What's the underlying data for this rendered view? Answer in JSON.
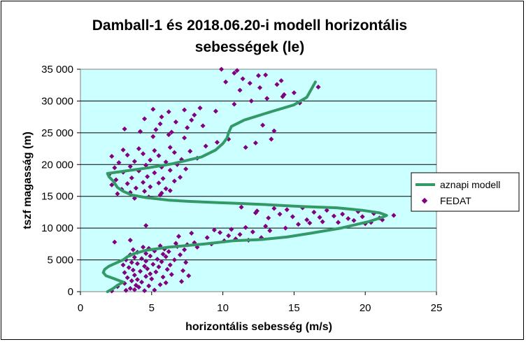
{
  "chart_data": {
    "type": "scatter",
    "title_lines": [
      "Damball-1 és 2018.06.20-i modell horizontális",
      "sebességek (le)"
    ],
    "xlabel": "horizontális sebesség (m/s)",
    "ylabel": "tszf magasság (m)",
    "xlim": [
      0,
      25
    ],
    "ylim": [
      0,
      35000
    ],
    "x_ticks": [
      "0",
      "5",
      "10",
      "15",
      "20",
      "25"
    ],
    "y_ticks": [
      "0",
      "5 000",
      "10 000",
      "15 000",
      "20 000",
      "25 000",
      "30 000",
      "35 000"
    ],
    "plot_background": "#ccffff",
    "legend_position": "right",
    "series": [
      {
        "name": "aznapi modell",
        "kind": "line",
        "color": "#339966",
        "points": [
          [
            1.9,
            0
          ],
          [
            2.3,
            500
          ],
          [
            2.6,
            1000
          ],
          [
            3.0,
            1500
          ],
          [
            2.4,
            2000
          ],
          [
            1.8,
            2500
          ],
          [
            1.6,
            3000
          ],
          [
            1.7,
            3500
          ],
          [
            2.0,
            4000
          ],
          [
            2.5,
            4500
          ],
          [
            3.0,
            5000
          ],
          [
            3.3,
            5500
          ],
          [
            3.8,
            6000
          ],
          [
            4.6,
            6500
          ],
          [
            6.2,
            7000
          ],
          [
            8.7,
            7500
          ],
          [
            10.7,
            8000
          ],
          [
            12.7,
            8200
          ],
          [
            14.5,
            8600
          ],
          [
            16.2,
            9200
          ],
          [
            18.3,
            10000
          ],
          [
            20.2,
            11000
          ],
          [
            21.2,
            11700
          ],
          [
            21.5,
            12000
          ],
          [
            21.0,
            12400
          ],
          [
            19.8,
            12800
          ],
          [
            18.0,
            13200
          ],
          [
            15.5,
            13400
          ],
          [
            13.0,
            13700
          ],
          [
            11.0,
            13900
          ],
          [
            9.7,
            14000
          ],
          [
            7.7,
            14200
          ],
          [
            6.2,
            14400
          ],
          [
            4.6,
            14800
          ],
          [
            3.6,
            15200
          ],
          [
            3.0,
            15800
          ],
          [
            2.6,
            16400
          ],
          [
            2.3,
            17400
          ],
          [
            2.0,
            18100
          ],
          [
            1.9,
            18600
          ],
          [
            3.2,
            19000
          ],
          [
            4.8,
            19500
          ],
          [
            6.4,
            20100
          ],
          [
            8.5,
            21200
          ],
          [
            9.5,
            22300
          ],
          [
            10.0,
            23300
          ],
          [
            10.3,
            24200
          ],
          [
            10.4,
            25000
          ],
          [
            10.6,
            26000
          ],
          [
            11.5,
            27000
          ],
          [
            13.5,
            28400
          ],
          [
            15.0,
            29400
          ],
          [
            15.9,
            30600
          ],
          [
            16.5,
            33000
          ]
        ]
      },
      {
        "name": "FEDAT",
        "kind": "scatter",
        "color": "#800080",
        "points": [
          [
            2.2,
            100
          ],
          [
            3.2,
            200
          ],
          [
            3.8,
            300
          ],
          [
            4.5,
            150
          ],
          [
            5.2,
            250
          ],
          [
            3.5,
            500
          ],
          [
            4.1,
            700
          ],
          [
            2.6,
            800
          ],
          [
            3.9,
            1000
          ],
          [
            4.8,
            900
          ],
          [
            5.6,
            1100
          ],
          [
            3.1,
            1300
          ],
          [
            4.3,
            1500
          ],
          [
            3.6,
            1700
          ],
          [
            6.0,
            1400
          ],
          [
            7.1,
            1600
          ],
          [
            4.0,
            1900
          ],
          [
            5.0,
            2000
          ],
          [
            3.3,
            2200
          ],
          [
            4.6,
            2400
          ],
          [
            5.8,
            2300
          ],
          [
            3.8,
            2600
          ],
          [
            4.9,
            2800
          ],
          [
            6.4,
            2700
          ],
          [
            7.6,
            2500
          ],
          [
            3.1,
            3000
          ],
          [
            4.2,
            3200
          ],
          [
            5.3,
            3100
          ],
          [
            3.7,
            3400
          ],
          [
            4.7,
            3600
          ],
          [
            6.1,
            3500
          ],
          [
            7.2,
            3300
          ],
          [
            3.4,
            3800
          ],
          [
            4.5,
            4000
          ],
          [
            5.5,
            3900
          ],
          [
            3.0,
            4200
          ],
          [
            4.0,
            4400
          ],
          [
            5.1,
            4300
          ],
          [
            6.3,
            4200
          ],
          [
            3.6,
            4600
          ],
          [
            4.6,
            4800
          ],
          [
            5.7,
            4700
          ],
          [
            7.4,
            4600
          ],
          [
            3.2,
            5000
          ],
          [
            4.3,
            5200
          ],
          [
            5.4,
            5100
          ],
          [
            6.6,
            5000
          ],
          [
            3.8,
            5400
          ],
          [
            4.9,
            5600
          ],
          [
            6.0,
            5500
          ],
          [
            3.5,
            5800
          ],
          [
            4.6,
            6000
          ],
          [
            5.8,
            5900
          ],
          [
            7.0,
            5800
          ],
          [
            4.0,
            6200
          ],
          [
            5.2,
            6400
          ],
          [
            6.2,
            6300
          ],
          [
            3.7,
            6600
          ],
          [
            4.8,
            6800
          ],
          [
            5.9,
            6700
          ],
          [
            7.3,
            6600
          ],
          [
            4.4,
            7000
          ],
          [
            5.6,
            7200
          ],
          [
            6.8,
            7100
          ],
          [
            8.2,
            7000
          ],
          [
            7.5,
            7400
          ],
          [
            6.7,
            7600
          ],
          [
            8.0,
            7700
          ],
          [
            9.2,
            7500
          ],
          [
            10.1,
            8000
          ],
          [
            10.9,
            8300
          ],
          [
            11.8,
            8100
          ],
          [
            12.7,
            8500
          ],
          [
            10.4,
            8800
          ],
          [
            11.2,
            9000
          ],
          [
            9.8,
            9300
          ],
          [
            12.1,
            9400
          ],
          [
            13.3,
            9600
          ],
          [
            10.6,
            9800
          ],
          [
            11.6,
            10100
          ],
          [
            13.0,
            10300
          ],
          [
            14.4,
            10000
          ],
          [
            15.3,
            10600
          ],
          [
            16.1,
            10800
          ],
          [
            17.0,
            11000
          ],
          [
            18.1,
            10900
          ],
          [
            19.2,
            11200
          ],
          [
            20.0,
            10700
          ],
          [
            21.2,
            11300
          ],
          [
            22.0,
            12000
          ],
          [
            20.6,
            12300
          ],
          [
            19.5,
            12600
          ],
          [
            18.4,
            12200
          ],
          [
            17.3,
            12800
          ],
          [
            16.4,
            12500
          ],
          [
            15.6,
            13200
          ],
          [
            14.5,
            12900
          ],
          [
            13.6,
            13100
          ],
          [
            12.4,
            12700
          ],
          [
            11.3,
            13300
          ],
          [
            19.8,
            11800
          ],
          [
            18.8,
            11500
          ],
          [
            17.8,
            11900
          ],
          [
            16.8,
            11700
          ],
          [
            15.9,
            11300
          ],
          [
            14.9,
            11800
          ],
          [
            20.4,
            10900
          ],
          [
            21.0,
            11600
          ],
          [
            13.2,
            11600
          ],
          [
            12.3,
            12400
          ],
          [
            14.0,
            12200
          ],
          [
            3.8,
            14700
          ],
          [
            4.8,
            14900
          ],
          [
            5.6,
            15200
          ],
          [
            2.6,
            15400
          ],
          [
            3.5,
            15600
          ],
          [
            4.5,
            15800
          ],
          [
            5.7,
            15500
          ],
          [
            6.3,
            15900
          ],
          [
            2.9,
            16100
          ],
          [
            3.9,
            16300
          ],
          [
            4.9,
            16500
          ],
          [
            6.0,
            16200
          ],
          [
            2.2,
            16800
          ],
          [
            3.3,
            17000
          ],
          [
            4.4,
            17200
          ],
          [
            5.5,
            17100
          ],
          [
            6.6,
            17400
          ],
          [
            2.5,
            17600
          ],
          [
            3.6,
            17900
          ],
          [
            4.7,
            18100
          ],
          [
            5.8,
            17800
          ],
          [
            7.0,
            18000
          ],
          [
            2.0,
            18400
          ],
          [
            3.0,
            18800
          ],
          [
            4.1,
            19000
          ],
          [
            5.2,
            18700
          ],
          [
            6.3,
            19100
          ],
          [
            7.4,
            19300
          ],
          [
            2.4,
            19500
          ],
          [
            3.5,
            19700
          ],
          [
            4.6,
            19900
          ],
          [
            5.7,
            19600
          ],
          [
            6.8,
            20000
          ],
          [
            2.7,
            20300
          ],
          [
            3.8,
            20500
          ],
          [
            4.9,
            20700
          ],
          [
            6.0,
            20400
          ],
          [
            7.1,
            20800
          ],
          [
            8.2,
            21000
          ],
          [
            2.2,
            21300
          ],
          [
            3.3,
            21500
          ],
          [
            4.4,
            21700
          ],
          [
            5.5,
            21400
          ],
          [
            6.6,
            21900
          ],
          [
            7.7,
            22100
          ],
          [
            3.0,
            22300
          ],
          [
            4.1,
            22500
          ],
          [
            5.2,
            22200
          ],
          [
            6.3,
            22700
          ],
          [
            8.8,
            22900
          ],
          [
            9.6,
            23500
          ],
          [
            10.4,
            24000
          ],
          [
            5.1,
            24400
          ],
          [
            6.2,
            24700
          ],
          [
            7.3,
            24200
          ],
          [
            4.2,
            25200
          ],
          [
            5.3,
            25500
          ],
          [
            6.4,
            25100
          ],
          [
            3.1,
            25600
          ],
          [
            7.5,
            25800
          ],
          [
            8.6,
            26100
          ],
          [
            5.6,
            26400
          ],
          [
            6.7,
            26700
          ],
          [
            7.8,
            27000
          ],
          [
            4.5,
            27200
          ],
          [
            5.7,
            27500
          ],
          [
            8.0,
            27800
          ],
          [
            6.2,
            28300
          ],
          [
            7.3,
            28600
          ],
          [
            8.4,
            28900
          ],
          [
            9.5,
            28400
          ],
          [
            5.1,
            28700
          ],
          [
            10.8,
            29500
          ],
          [
            12.0,
            30000
          ],
          [
            13.1,
            30400
          ],
          [
            14.3,
            31000
          ],
          [
            15.0,
            31300
          ],
          [
            11.2,
            31700
          ],
          [
            12.6,
            32100
          ],
          [
            13.8,
            32600
          ],
          [
            10.2,
            33000
          ],
          [
            11.4,
            33500
          ],
          [
            12.5,
            34000
          ],
          [
            10.8,
            34400
          ],
          [
            11.0,
            34800
          ],
          [
            9.9,
            35000
          ],
          [
            13.0,
            34100
          ],
          [
            14.1,
            33200
          ],
          [
            11.9,
            32800
          ],
          [
            16.7,
            32200
          ],
          [
            13.4,
            24000
          ],
          [
            12.3,
            23400
          ],
          [
            11.6,
            22700
          ],
          [
            12.8,
            26200
          ],
          [
            13.6,
            25300
          ],
          [
            14.2,
            30700
          ],
          [
            15.4,
            29700
          ],
          [
            4.6,
            10400
          ],
          [
            3.5,
            8100
          ],
          [
            2.4,
            7800
          ],
          [
            8.9,
            8500
          ],
          [
            7.8,
            9200
          ],
          [
            6.9,
            8700
          ],
          [
            9.4,
            9700
          ]
        ]
      }
    ]
  }
}
